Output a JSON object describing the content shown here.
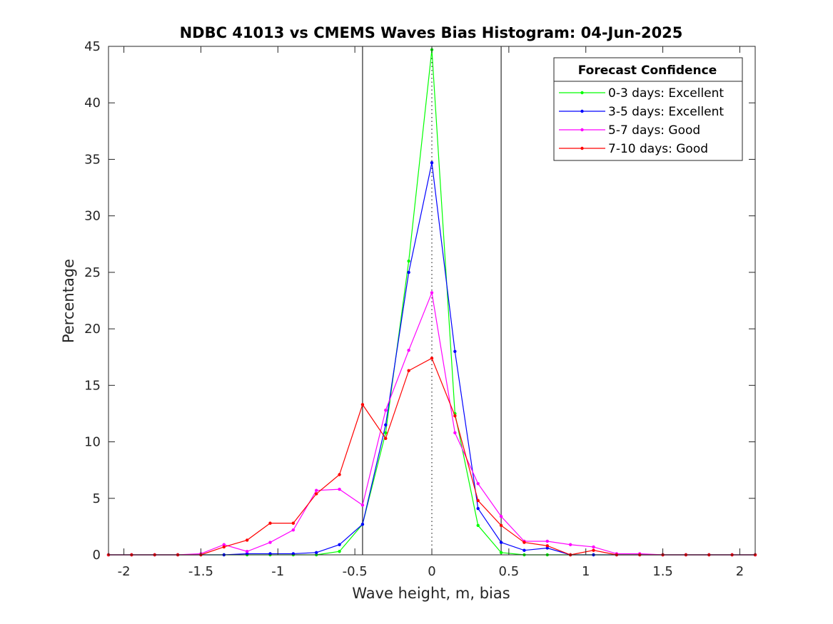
{
  "chart_data": {
    "type": "line",
    "title": "NDBC 41013 vs CMEMS Waves Bias Histogram: 04-Jun-2025",
    "xlabel": "Wave height, m, bias",
    "ylabel": "Percentage",
    "xlim": [
      -2.1,
      2.1
    ],
    "ylim": [
      0,
      45
    ],
    "xticks": [
      -2,
      -1.5,
      -1,
      -0.5,
      0,
      0.5,
      1,
      1.5,
      2
    ],
    "xtick_labels": [
      "-2",
      "-1.5",
      "-1",
      "-0.5",
      "0",
      "0.5",
      "1",
      "1.5",
      "2"
    ],
    "yticks": [
      0,
      5,
      10,
      15,
      20,
      25,
      30,
      35,
      40,
      45
    ],
    "ytick_labels": [
      "0",
      "5",
      "10",
      "15",
      "20",
      "25",
      "30",
      "35",
      "40",
      "45"
    ],
    "grid": false,
    "reference_lines": {
      "solid_x": [
        -0.45,
        0.45
      ],
      "dotted_x": [
        0
      ]
    },
    "legend": {
      "title": "Forecast Confidence",
      "placement": "top-right"
    },
    "x": [
      -2.1,
      -1.95,
      -1.8,
      -1.65,
      -1.5,
      -1.35,
      -1.2,
      -1.05,
      -0.9,
      -0.75,
      -0.6,
      -0.45,
      -0.3,
      -0.15,
      0,
      0.15,
      0.3,
      0.45,
      0.6,
      0.75,
      0.9,
      1.05,
      1.2,
      1.35,
      1.5,
      1.65,
      1.8,
      1.95,
      2.1
    ],
    "series": [
      {
        "name": "0-3 days: Excellent",
        "color": "#00ff00",
        "values": [
          0,
          0,
          0,
          0,
          0,
          0,
          0,
          0,
          0,
          0,
          0.3,
          2.7,
          10.8,
          26,
          44.7,
          12.5,
          2.6,
          0.2,
          0,
          0,
          0,
          0,
          0,
          0,
          0,
          0,
          0,
          0,
          0
        ]
      },
      {
        "name": "3-5 days: Excellent",
        "color": "#0000ff",
        "values": [
          0,
          0,
          0,
          0,
          0,
          0,
          0.1,
          0.1,
          0.1,
          0.2,
          0.9,
          2.7,
          11.5,
          25,
          34.7,
          18,
          4.1,
          1.1,
          0.4,
          0.6,
          0,
          0,
          0,
          0,
          0,
          0,
          0,
          0,
          0
        ]
      },
      {
        "name": "5-7 days: Good",
        "color": "#ff00ff",
        "values": [
          0,
          0,
          0,
          0,
          0.1,
          0.9,
          0.3,
          1.1,
          2.2,
          5.7,
          5.8,
          4.4,
          12.8,
          18.1,
          23.2,
          10.8,
          6.3,
          3.4,
          1.2,
          1.2,
          0.9,
          0.7,
          0.1,
          0.1,
          0,
          0,
          0,
          0,
          0
        ]
      },
      {
        "name": "7-10 days: Good",
        "color": "#ff0000",
        "values": [
          0,
          0,
          0,
          0,
          0,
          0.7,
          1.3,
          2.8,
          2.8,
          5.4,
          7.1,
          13.3,
          10.3,
          16.3,
          17.4,
          12.3,
          4.8,
          2.6,
          1.1,
          0.8,
          0,
          0.4,
          0,
          0,
          0,
          0,
          0,
          0,
          0
        ]
      }
    ]
  }
}
